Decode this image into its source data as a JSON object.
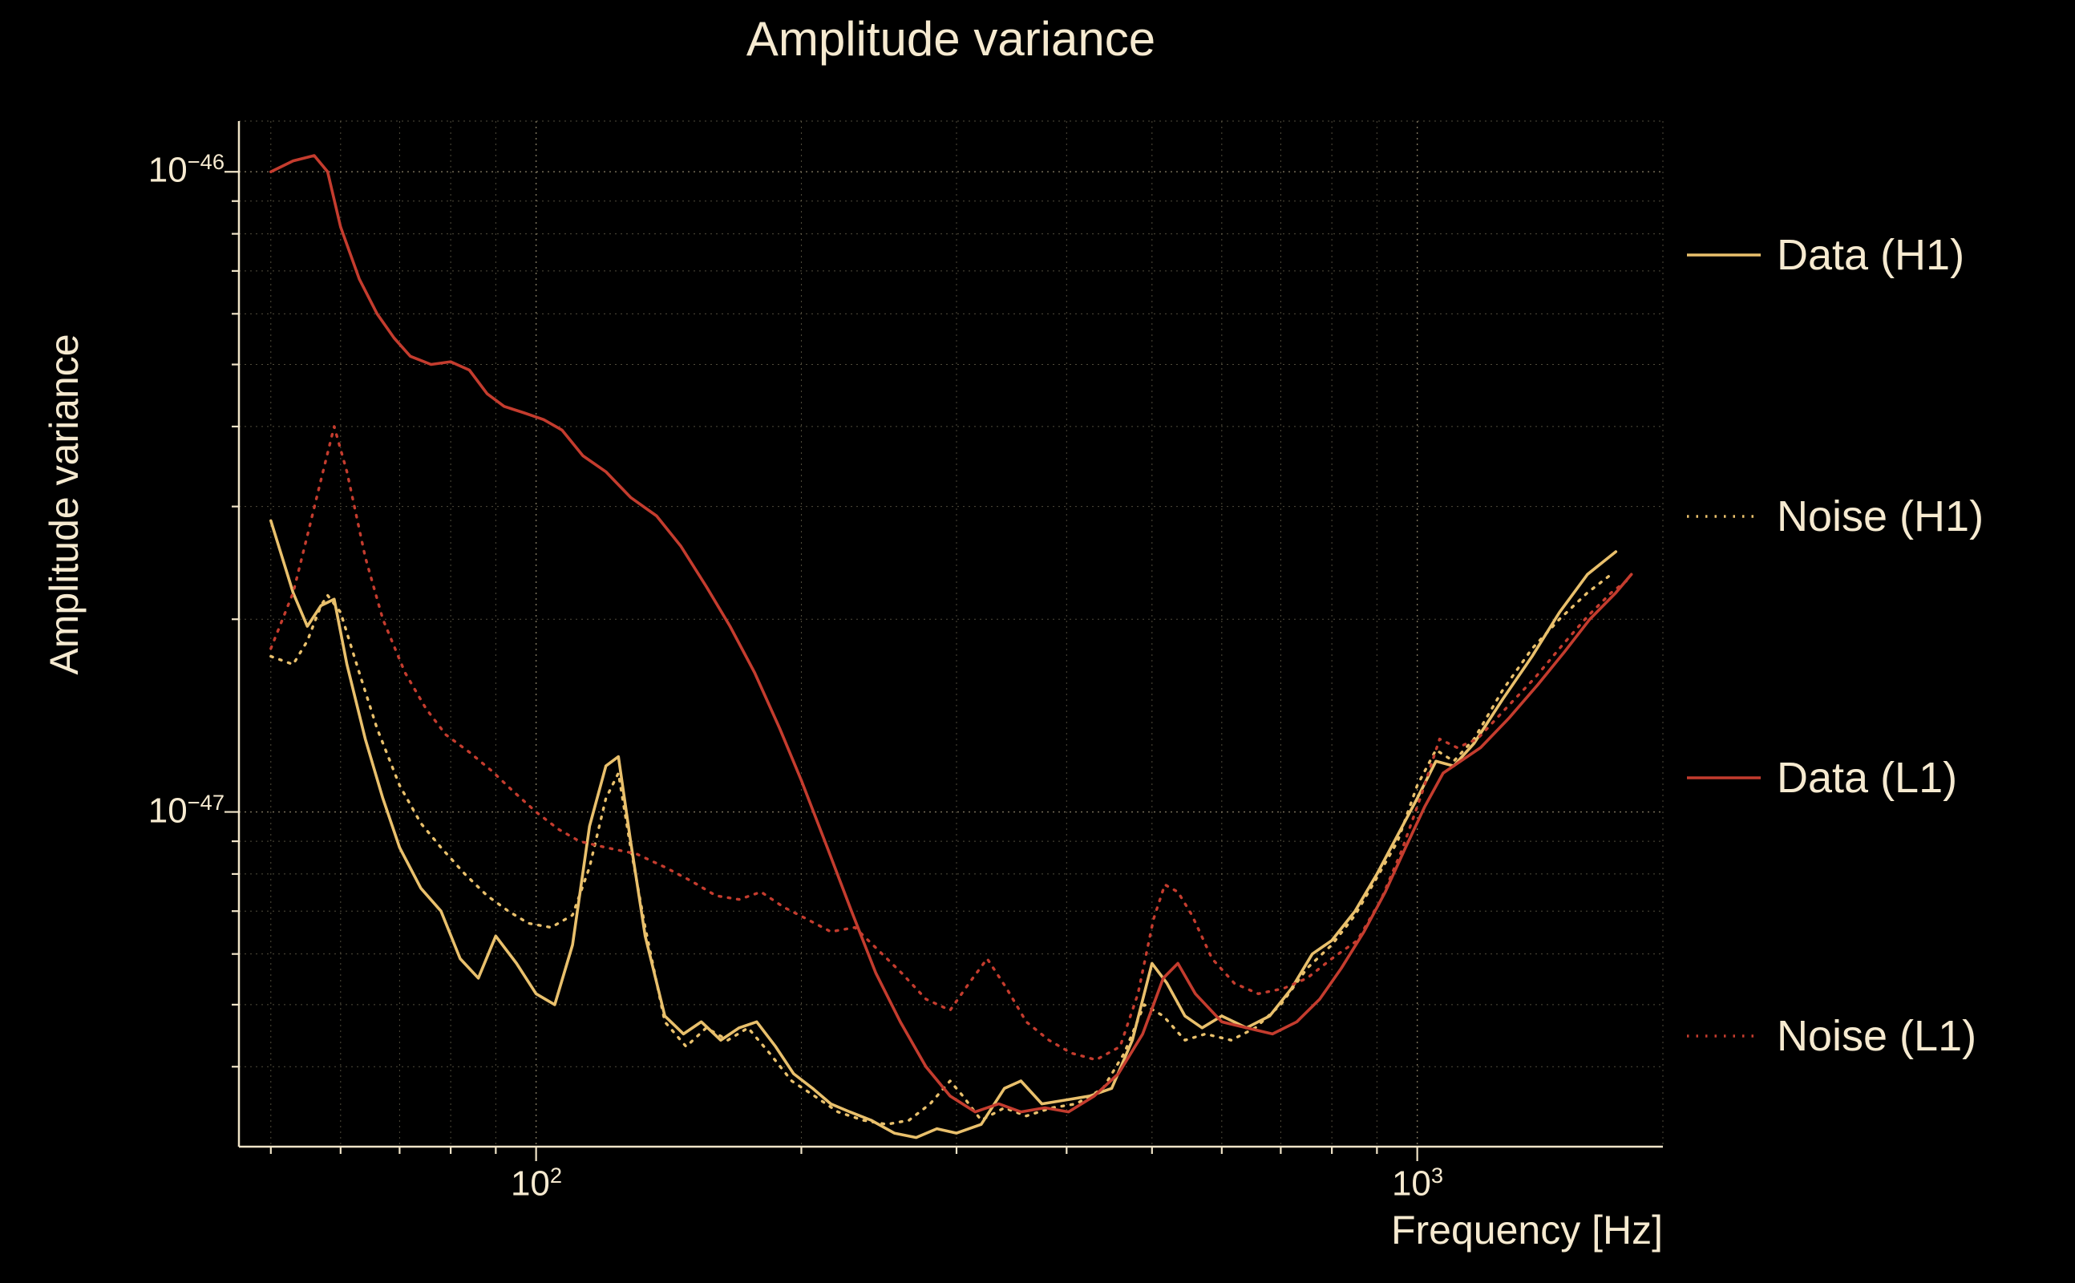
{
  "page": {
    "background": "#000000",
    "text_color": "#f6ead0"
  },
  "title": "Amplitude variance",
  "axes": {
    "xlabel": "Frequency [Hz]",
    "ylabel": "Amplitude variance",
    "x_ticks": [
      {
        "base": "10",
        "exp": "2"
      },
      {
        "base": "10",
        "exp": "3"
      }
    ],
    "y_ticks": [
      {
        "base": "10",
        "exp": "−46"
      },
      {
        "base": "10",
        "exp": "−47"
      }
    ]
  },
  "colors": {
    "h1": "#e9c06c",
    "l1": "#c43c2e",
    "text": "#f6ead0",
    "grid": "#948a6e",
    "spine": "#f0e4c8"
  },
  "chart_data": {
    "type": "line",
    "title": "Amplitude variance",
    "xlabel": "Frequency [Hz]",
    "ylabel": "Amplitude variance",
    "x_scale": "log",
    "y_scale": "log",
    "xlim": [
      46,
      1900
    ],
    "ylim": [
      3e-48,
      1.2e-46
    ],
    "x_major_ticks": [
      100,
      1000
    ],
    "x_minor_ticks": [
      50,
      60,
      70,
      80,
      90,
      200,
      300,
      400,
      500,
      600,
      700,
      800,
      900
    ],
    "y_major_ticks": [
      1e-46,
      1e-47
    ],
    "grid": true,
    "legend_position": "right",
    "series": [
      {
        "name": "Data (H1)",
        "color": "#e9c06c",
        "style": "solid",
        "points": [
          [
            50,
            2.85e-47
          ],
          [
            53,
            2.2e-47
          ],
          [
            55,
            1.95e-47
          ],
          [
            57,
            2.1e-47
          ],
          [
            59,
            2.15e-47
          ],
          [
            61,
            1.7e-47
          ],
          [
            64,
            1.3e-47
          ],
          [
            67,
            1.05e-47
          ],
          [
            70,
            8.8e-48
          ],
          [
            74,
            7.6e-48
          ],
          [
            78,
            7e-48
          ],
          [
            82,
            5.9e-48
          ],
          [
            86,
            5.5e-48
          ],
          [
            90,
            6.4e-48
          ],
          [
            95,
            5.8e-48
          ],
          [
            100,
            5.2e-48
          ],
          [
            105,
            5e-48
          ],
          [
            110,
            6.2e-48
          ],
          [
            115,
            9.5e-48
          ],
          [
            120,
            1.18e-47
          ],
          [
            124,
            1.22e-47
          ],
          [
            128,
            9e-48
          ],
          [
            133,
            6.4e-48
          ],
          [
            140,
            4.8e-48
          ],
          [
            147,
            4.5e-48
          ],
          [
            154,
            4.7e-48
          ],
          [
            162,
            4.4e-48
          ],
          [
            170,
            4.6e-48
          ],
          [
            178,
            4.7e-48
          ],
          [
            187,
            4.3e-48
          ],
          [
            196,
            3.9e-48
          ],
          [
            206,
            3.7e-48
          ],
          [
            216,
            3.5e-48
          ],
          [
            227,
            3.4e-48
          ],
          [
            240,
            3.3e-48
          ],
          [
            255,
            3.15e-48
          ],
          [
            270,
            3.1e-48
          ],
          [
            285,
            3.2e-48
          ],
          [
            300,
            3.15e-48
          ],
          [
            320,
            3.25e-48
          ],
          [
            340,
            3.7e-48
          ],
          [
            355,
            3.8e-48
          ],
          [
            375,
            3.5e-48
          ],
          [
            400,
            3.55e-48
          ],
          [
            425,
            3.6e-48
          ],
          [
            450,
            3.7e-48
          ],
          [
            475,
            4.4e-48
          ],
          [
            500,
            5.8e-48
          ],
          [
            520,
            5.4e-48
          ],
          [
            545,
            4.8e-48
          ],
          [
            570,
            4.6e-48
          ],
          [
            600,
            4.8e-48
          ],
          [
            640,
            4.6e-48
          ],
          [
            680,
            4.8e-48
          ],
          [
            720,
            5.3e-48
          ],
          [
            760,
            6e-48
          ],
          [
            800,
            6.3e-48
          ],
          [
            850,
            7e-48
          ],
          [
            900,
            8e-48
          ],
          [
            950,
            9.2e-48
          ],
          [
            1000,
            1.05e-47
          ],
          [
            1050,
            1.2e-47
          ],
          [
            1100,
            1.18e-47
          ],
          [
            1160,
            1.28e-47
          ],
          [
            1250,
            1.5e-47
          ],
          [
            1350,
            1.75e-47
          ],
          [
            1450,
            2.05e-47
          ],
          [
            1560,
            2.35e-47
          ],
          [
            1680,
            2.55e-47
          ]
        ]
      },
      {
        "name": "Noise (H1)",
        "color": "#e9c06c",
        "style": "dotted",
        "points": [
          [
            50,
            1.75e-47
          ],
          [
            53,
            1.7e-47
          ],
          [
            55,
            1.85e-47
          ],
          [
            57,
            2.1e-47
          ],
          [
            58,
            2.18e-47
          ],
          [
            60,
            2.05e-47
          ],
          [
            63,
            1.65e-47
          ],
          [
            66,
            1.35e-47
          ],
          [
            70,
            1.1e-47
          ],
          [
            74,
            9.6e-48
          ],
          [
            78,
            8.8e-48
          ],
          [
            83,
            8e-48
          ],
          [
            88,
            7.4e-48
          ],
          [
            93,
            7e-48
          ],
          [
            98,
            6.7e-48
          ],
          [
            104,
            6.6e-48
          ],
          [
            110,
            6.9e-48
          ],
          [
            115,
            8.2e-48
          ],
          [
            120,
            1.05e-47
          ],
          [
            124,
            1.15e-47
          ],
          [
            128,
            8.8e-48
          ],
          [
            133,
            6.6e-48
          ],
          [
            140,
            4.7e-48
          ],
          [
            148,
            4.3e-48
          ],
          [
            156,
            4.6e-48
          ],
          [
            165,
            4.4e-48
          ],
          [
            174,
            4.6e-48
          ],
          [
            184,
            4.2e-48
          ],
          [
            195,
            3.8e-48
          ],
          [
            207,
            3.6e-48
          ],
          [
            220,
            3.4e-48
          ],
          [
            235,
            3.3e-48
          ],
          [
            250,
            3.25e-48
          ],
          [
            265,
            3.3e-48
          ],
          [
            280,
            3.5e-48
          ],
          [
            295,
            3.8e-48
          ],
          [
            305,
            3.6e-48
          ],
          [
            320,
            3.3e-48
          ],
          [
            340,
            3.45e-48
          ],
          [
            360,
            3.35e-48
          ],
          [
            385,
            3.45e-48
          ],
          [
            410,
            3.5e-48
          ],
          [
            440,
            3.7e-48
          ],
          [
            465,
            4.2e-48
          ],
          [
            490,
            5e-48
          ],
          [
            515,
            4.8e-48
          ],
          [
            545,
            4.4e-48
          ],
          [
            575,
            4.5e-48
          ],
          [
            615,
            4.4e-48
          ],
          [
            655,
            4.6e-48
          ],
          [
            700,
            5e-48
          ],
          [
            750,
            5.7e-48
          ],
          [
            800,
            6.2e-48
          ],
          [
            850,
            6.9e-48
          ],
          [
            900,
            7.9e-48
          ],
          [
            950,
            9e-48
          ],
          [
            1000,
            1.1e-47
          ],
          [
            1050,
            1.25e-47
          ],
          [
            1100,
            1.2e-47
          ],
          [
            1160,
            1.3e-47
          ],
          [
            1250,
            1.55e-47
          ],
          [
            1350,
            1.8e-47
          ],
          [
            1450,
            2e-47
          ],
          [
            1560,
            2.2e-47
          ],
          [
            1660,
            2.35e-47
          ]
        ]
      },
      {
        "name": "Data (L1)",
        "color": "#c43c2e",
        "style": "solid",
        "points": [
          [
            50,
            1e-46
          ],
          [
            53,
            1.04e-46
          ],
          [
            56,
            1.06e-46
          ],
          [
            58,
            1e-46
          ],
          [
            60,
            8.2e-47
          ],
          [
            63,
            6.8e-47
          ],
          [
            66,
            6e-47
          ],
          [
            69,
            5.5e-47
          ],
          [
            72,
            5.15e-47
          ],
          [
            76,
            5e-47
          ],
          [
            80,
            5.05e-47
          ],
          [
            84,
            4.9e-47
          ],
          [
            88,
            4.5e-47
          ],
          [
            92,
            4.3e-47
          ],
          [
            97,
            4.2e-47
          ],
          [
            102,
            4.1e-47
          ],
          [
            107,
            3.95e-47
          ],
          [
            113,
            3.6e-47
          ],
          [
            120,
            3.4e-47
          ],
          [
            128,
            3.1e-47
          ],
          [
            137,
            2.9e-47
          ],
          [
            146,
            2.6e-47
          ],
          [
            156,
            2.25e-47
          ],
          [
            166,
            1.95e-47
          ],
          [
            177,
            1.65e-47
          ],
          [
            189,
            1.35e-47
          ],
          [
            200,
            1.12e-47
          ],
          [
            214,
            8.8e-48
          ],
          [
            228,
            7e-48
          ],
          [
            243,
            5.6e-48
          ],
          [
            259,
            4.7e-48
          ],
          [
            277,
            4e-48
          ],
          [
            295,
            3.6e-48
          ],
          [
            315,
            3.4e-48
          ],
          [
            335,
            3.5e-48
          ],
          [
            355,
            3.4e-48
          ],
          [
            378,
            3.45e-48
          ],
          [
            402,
            3.4e-48
          ],
          [
            430,
            3.6e-48
          ],
          [
            458,
            3.9e-48
          ],
          [
            488,
            4.5e-48
          ],
          [
            515,
            5.5e-48
          ],
          [
            535,
            5.8e-48
          ],
          [
            560,
            5.2e-48
          ],
          [
            600,
            4.7e-48
          ],
          [
            640,
            4.6e-48
          ],
          [
            685,
            4.5e-48
          ],
          [
            730,
            4.7e-48
          ],
          [
            775,
            5.1e-48
          ],
          [
            820,
            5.7e-48
          ],
          [
            870,
            6.5e-48
          ],
          [
            920,
            7.5e-48
          ],
          [
            970,
            8.8e-48
          ],
          [
            1020,
            1.02e-47
          ],
          [
            1070,
            1.15e-47
          ],
          [
            1120,
            1.2e-47
          ],
          [
            1180,
            1.26e-47
          ],
          [
            1270,
            1.4e-47
          ],
          [
            1370,
            1.58e-47
          ],
          [
            1470,
            1.78e-47
          ],
          [
            1570,
            2e-47
          ],
          [
            1680,
            2.2e-47
          ],
          [
            1750,
            2.35e-47
          ]
        ]
      },
      {
        "name": "Noise (L1)",
        "color": "#c43c2e",
        "style": "dotted",
        "points": [
          [
            50,
            1.8e-47
          ],
          [
            53,
            2.2e-47
          ],
          [
            55,
            2.7e-47
          ],
          [
            57,
            3.3e-47
          ],
          [
            59,
            4e-47
          ],
          [
            61,
            3.4e-47
          ],
          [
            64,
            2.5e-47
          ],
          [
            67,
            2e-47
          ],
          [
            71,
            1.65e-47
          ],
          [
            75,
            1.45e-47
          ],
          [
            79,
            1.32e-47
          ],
          [
            84,
            1.24e-47
          ],
          [
            89,
            1.16e-47
          ],
          [
            94,
            1.08e-47
          ],
          [
            100,
            1e-47
          ],
          [
            106,
            9.4e-48
          ],
          [
            112,
            9e-48
          ],
          [
            120,
            8.8e-48
          ],
          [
            130,
            8.6e-48
          ],
          [
            140,
            8.2e-48
          ],
          [
            150,
            7.8e-48
          ],
          [
            160,
            7.4e-48
          ],
          [
            170,
            7.3e-48
          ],
          [
            180,
            7.5e-48
          ],
          [
            191,
            7.1e-48
          ],
          [
            203,
            6.8e-48
          ],
          [
            216,
            6.5e-48
          ],
          [
            230,
            6.6e-48
          ],
          [
            244,
            6.1e-48
          ],
          [
            260,
            5.6e-48
          ],
          [
            277,
            5.1e-48
          ],
          [
            295,
            4.9e-48
          ],
          [
            310,
            5.4e-48
          ],
          [
            325,
            5.9e-48
          ],
          [
            342,
            5.3e-48
          ],
          [
            360,
            4.7e-48
          ],
          [
            382,
            4.4e-48
          ],
          [
            405,
            4.2e-48
          ],
          [
            432,
            4.1e-48
          ],
          [
            460,
            4.3e-48
          ],
          [
            482,
            5.2e-48
          ],
          [
            502,
            6.8e-48
          ],
          [
            517,
            7.7e-48
          ],
          [
            535,
            7.5e-48
          ],
          [
            555,
            6.9e-48
          ],
          [
            585,
            5.9e-48
          ],
          [
            620,
            5.4e-48
          ],
          [
            660,
            5.2e-48
          ],
          [
            705,
            5.3e-48
          ],
          [
            750,
            5.5e-48
          ],
          [
            800,
            5.9e-48
          ],
          [
            855,
            6.3e-48
          ],
          [
            910,
            7.3e-48
          ],
          [
            960,
            8.7e-48
          ],
          [
            1010,
            1.06e-47
          ],
          [
            1060,
            1.3e-47
          ],
          [
            1110,
            1.26e-47
          ],
          [
            1170,
            1.3e-47
          ],
          [
            1260,
            1.45e-47
          ],
          [
            1360,
            1.62e-47
          ],
          [
            1460,
            1.82e-47
          ],
          [
            1560,
            2.02e-47
          ],
          [
            1660,
            2.2e-47
          ],
          [
            1730,
            2.3e-47
          ]
        ]
      }
    ]
  }
}
